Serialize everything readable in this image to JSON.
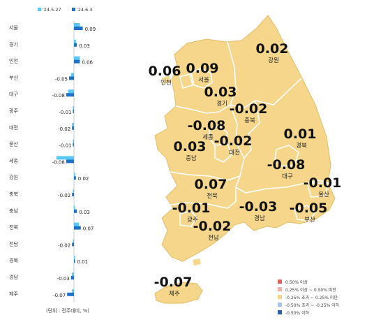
{
  "chart_data": {
    "type": "bar",
    "title": "",
    "legend": [
      "'24.5.27",
      "'24.6.3"
    ],
    "legend_position": "top-left",
    "colors": {
      "prev": "#5ac8f5",
      "curr": "#1a73c8",
      "map_fill": "#f5d68a",
      "map_stroke": "#ffffff"
    },
    "categories": [
      "서울",
      "경기",
      "인천",
      "부산",
      "대구",
      "광주",
      "대전",
      "울산",
      "세종",
      "강원",
      "충북",
      "충남",
      "전북",
      "전남",
      "경북",
      "경남",
      "제주"
    ],
    "series": [
      {
        "name": "'24.5.27",
        "values": [
          0.06,
          0.02,
          0.06,
          -0.03,
          -0.06,
          -0.01,
          -0.02,
          -0.01,
          -0.18,
          0.01,
          -0.01,
          0.01,
          0.05,
          -0.01,
          0.01,
          -0.02,
          -0.02
        ]
      },
      {
        "name": "'24.6.3",
        "values": [
          0.09,
          0.03,
          0.06,
          -0.05,
          -0.08,
          -0.01,
          -0.02,
          -0.01,
          -0.08,
          0.02,
          -0.02,
          0.03,
          0.07,
          -0.02,
          0.01,
          -0.03,
          -0.07
        ]
      }
    ],
    "value_labels": [
      "0.09",
      "0.03",
      "0.06",
      "-0.05",
      "-0.08",
      "-0.01",
      "-0.02",
      "-0.01",
      "-0.08",
      "0.02",
      "-0.02",
      "0.03",
      "0.07",
      "-0.02",
      "0.01",
      "-0.03",
      "-0.07"
    ],
    "unit_note": "(단위 : 전주대비, %)"
  },
  "map": {
    "regions": [
      {
        "value": "0.06",
        "name": "인천"
      },
      {
        "value": "0.09",
        "name": "서울"
      },
      {
        "value": "0.02",
        "name": "강원"
      },
      {
        "value": "0.03",
        "name": "경기"
      },
      {
        "value": "-0.02",
        "name": "충북"
      },
      {
        "value": "-0.08",
        "name": "세종"
      },
      {
        "value": "-0.02",
        "name": "대전"
      },
      {
        "value": "0.03",
        "name": "충남"
      },
      {
        "value": "0.01",
        "name": "경북"
      },
      {
        "value": "-0.08",
        "name": "대구"
      },
      {
        "value": "-0.01",
        "name": "울산"
      },
      {
        "value": "0.07",
        "name": "전북"
      },
      {
        "value": "-0.01",
        "name": "광주"
      },
      {
        "value": "-0.02",
        "name": "전남"
      },
      {
        "value": "-0.03",
        "name": "경남"
      },
      {
        "value": "-0.05",
        "name": "부산"
      },
      {
        "value": "-0.07",
        "name": "제주"
      }
    ],
    "legend": [
      {
        "label": "0.50% 이상",
        "color": "#e06060"
      },
      {
        "label": "0.25% 이상 ~ 0.50% 미만",
        "color": "#f2b0a8"
      },
      {
        "label": "-0.25% 초과 ~ 0.25% 미만",
        "color": "#f5d68a"
      },
      {
        "label": "-0.50% 초과 ~ -0.25% 이하",
        "color": "#a9c4e8"
      },
      {
        "label": "-0.50% 이하",
        "color": "#2a5fb0"
      }
    ]
  }
}
